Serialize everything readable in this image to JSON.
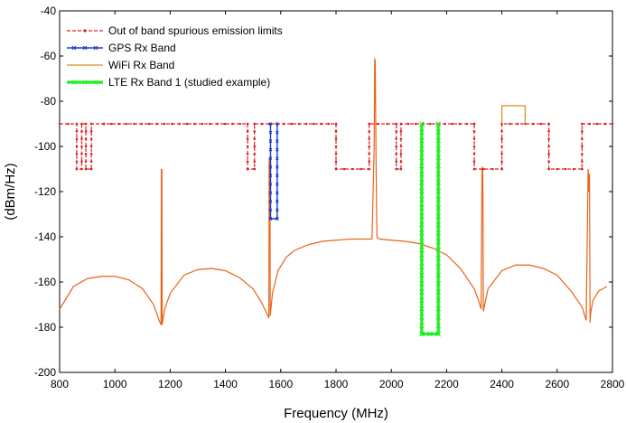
{
  "chart_data": {
    "type": "line",
    "title": "",
    "xlabel": "Frequency (MHz)",
    "ylabel": "(dBm/Hz)",
    "xlim": [
      800,
      2800
    ],
    "ylim": [
      -200,
      -40
    ],
    "xticks": [
      800,
      1000,
      1200,
      1400,
      1600,
      1800,
      2000,
      2200,
      2400,
      2600,
      2800
    ],
    "yticks": [
      -200,
      -180,
      -160,
      -140,
      -120,
      -100,
      -80,
      -60,
      -40
    ],
    "xtick_labels": [
      "800",
      "1000",
      "1200",
      "1400",
      "1600",
      "1800",
      "2000",
      "2200",
      "2400",
      "2600",
      "2800"
    ],
    "ytick_labels": [
      "-200",
      "-180",
      "-160",
      "-140",
      "-120",
      "-100",
      "-80",
      "-60",
      "-40"
    ],
    "grid": false,
    "legend_position": "top-left",
    "series": [
      {
        "name": "Out of band spurious emission limits",
        "color": "#e02020",
        "style": "dashed-dotted-markers",
        "x": [
          800,
          862,
          862,
          880,
          880,
          895,
          895,
          915,
          915,
          960,
          960,
          1480,
          1480,
          1505,
          1505,
          1800,
          1800,
          1920,
          1920,
          2018,
          2018,
          2035,
          2035,
          2300,
          2300,
          2400,
          2400,
          2570,
          2570,
          2690,
          2690,
          2800
        ],
        "y": [
          -90,
          -90,
          -110,
          -110,
          -90,
          -90,
          -110,
          -110,
          -90,
          -90,
          -90,
          -90,
          -110,
          -110,
          -90,
          -90,
          -110,
          -110,
          -90,
          -90,
          -110,
          -110,
          -90,
          -90,
          -110,
          -110,
          -90,
          -90,
          -110,
          -110,
          -90,
          -90
        ]
      },
      {
        "name": "GPS Rx Band",
        "color": "#1a3ccc",
        "style": "solid-markers",
        "x": [
          1563,
          1563,
          1587,
          1587
        ],
        "y": [
          -90,
          -132,
          -132,
          -90
        ]
      },
      {
        "name": "WiFi Rx Band",
        "color": "#d98a1a",
        "style": "solid",
        "x": [
          2400,
          2400,
          2484,
          2484
        ],
        "y": [
          -90,
          -82,
          -82,
          -90
        ]
      },
      {
        "name": "LTE Rx Band 1 (studied example)",
        "color": "#22ee22",
        "style": "thick-solid-markers",
        "x": [
          2110,
          2110,
          2170,
          2170
        ],
        "y": [
          -90,
          -183,
          -183,
          -90
        ]
      },
      {
        "name": "",
        "color": "#e8641a",
        "style": "solid-thin-noisy",
        "x": [
          800,
          850,
          900,
          950,
          1000,
          1050,
          1100,
          1140,
          1160,
          1167,
          1168,
          1169,
          1170,
          1171,
          1172,
          1180,
          1200,
          1250,
          1300,
          1350,
          1400,
          1450,
          1500,
          1530,
          1550,
          1557,
          1558,
          1559,
          1560,
          1561,
          1562,
          1570,
          1590,
          1620,
          1650,
          1700,
          1750,
          1800,
          1850,
          1900,
          1930,
          1938,
          1940,
          1942,
          1945,
          1948,
          1950,
          1960,
          2000,
          2050,
          2100,
          2150,
          2200,
          2250,
          2300,
          2315,
          2325,
          2328,
          2330,
          2331,
          2333,
          2338,
          2350,
          2400,
          2450,
          2500,
          2550,
          2600,
          2650,
          2690,
          2705,
          2712,
          2715,
          2717,
          2719,
          2722,
          2730,
          2750,
          2780
        ],
        "y": [
          -172,
          -162,
          -158.5,
          -157.5,
          -157.5,
          -159,
          -163,
          -170,
          -177,
          -179,
          -110,
          -111,
          -110,
          -179,
          -178,
          -172,
          -165,
          -157,
          -154.5,
          -154,
          -155,
          -158,
          -163,
          -169,
          -174,
          -176,
          -106,
          -105,
          -108,
          -112,
          -175,
          -165,
          -155,
          -149,
          -146,
          -143.5,
          -142,
          -141.5,
          -141,
          -141,
          -141,
          -100,
          -61,
          -63,
          -110,
          -140,
          -140.5,
          -141,
          -141.5,
          -142,
          -143,
          -145,
          -148,
          -154,
          -163,
          -168,
          -172,
          -110,
          -109,
          -114,
          -173,
          -170,
          -163,
          -155,
          -152.5,
          -152.5,
          -154,
          -157,
          -164,
          -171,
          -177,
          -110,
          -120,
          -112,
          -178,
          -173,
          -168,
          -164,
          -162
        ]
      }
    ]
  }
}
